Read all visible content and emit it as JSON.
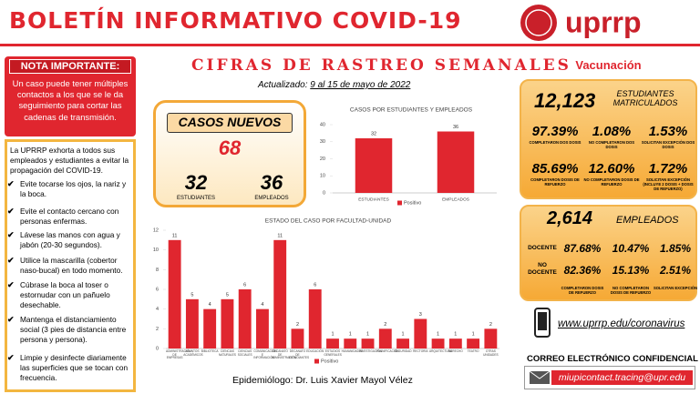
{
  "header": {
    "title": "BOLETÍN INFORMATIVO COVID-19",
    "logo_text": "uprrp"
  },
  "note": {
    "title": "NOTA IMPORTANTE:",
    "text": "Un caso puede tener múltiples contactos a los que se le da seguimiento para cortar las cadenas de transmisión."
  },
  "tips": {
    "intro": "La UPRRP exhorta a todos sus empleados y estudiantes a evitar la propagación del COVID-19.",
    "items": [
      "Evite tocarse los ojos, la nariz y la boca.",
      "Evite el contacto cercano con personas enfermas.",
      "Lávese las manos con agua y jabón (20-30 segundos).",
      "Utilice la mascarilla (cobertor naso-bucal) en todo momento.",
      "Cúbrase la boca al toser o estornudar con un pañuelo desechable.",
      "Mantenga el distanciamiento social (3 pies de distancia entre persona y persona).",
      "Limpie y desinfecte diariamente las superficies que se tocan con frecuencia."
    ]
  },
  "report": {
    "title": "CIFRAS DE RASTREO SEMANALES",
    "updated_label": "Actualizado:",
    "updated_dates": "9 al 15 de mayo de 2022"
  },
  "summary": {
    "title": "CASOS NUEVOS",
    "total": "68",
    "students": "32",
    "students_label": "ESTUDIANTES",
    "employees": "36",
    "employees_label": "EMPLEADOS"
  },
  "chart_data": [
    {
      "type": "bar",
      "title": "CASOS POR ESTUDIANTES Y EMPLEADOS",
      "categories": [
        "ESTUDIANTES",
        "EMPLEADOS"
      ],
      "series": [
        {
          "name": "Positivo",
          "color": "#e0262f",
          "values": [
            32,
            36
          ]
        }
      ],
      "ylim": [
        0,
        40
      ],
      "yticks": [
        0,
        10,
        20,
        30,
        40
      ],
      "grid": false,
      "legend": "bottom"
    },
    {
      "type": "bar",
      "title": "ESTADO DEL CASO POR FACULTAD-UNIDAD",
      "categories": [
        "ADMINISTRACIÓN DE EMPRESAS",
        "ASUNTOS ACADÉMICOS",
        "BIBLIOTECA",
        "CIENCIAS NATURALES",
        "CIENCIAS SOCIALES",
        "COMUNICACIÓN E INFORMACIÓN",
        "DECANATO DE ADMINISTRACIÓN",
        "DECANATO DE ESTUDIANTES",
        "EDUCACIÓN",
        "ESTUDIOS GENERALES",
        "HUMANIDADES",
        "INVESTIGACIÓN",
        "PLANIFICACIÓN",
        "SEGURIDAD",
        "RECTORÍA",
        "ARQUITECTURA",
        "DERECHO",
        "TEATRO",
        "OTRAS UNIDADES"
      ],
      "series": [
        {
          "name": "Positivo",
          "color": "#e0262f",
          "values": [
            11,
            5,
            4,
            5,
            6,
            4,
            11,
            2,
            6,
            1,
            1,
            1,
            2,
            1,
            3,
            1,
            1,
            1,
            2
          ]
        }
      ],
      "ylim": [
        0,
        12
      ],
      "yticks": [
        0,
        2,
        4,
        6,
        8,
        10,
        12
      ],
      "grid": false,
      "legend": "bottom"
    }
  ],
  "vaccination": {
    "title": "Vacunación",
    "students": {
      "count": "12,123",
      "label": "ESTUDIANTES MATRICULADOS",
      "rows": [
        [
          {
            "value": "97.39%",
            "label": "COMPLETARON DOS DOSIS"
          },
          {
            "value": "1.08%",
            "label": "NO COMPLETARON DOS DOSIS"
          },
          {
            "value": "1.53%",
            "label": "SOLICITAN EXCEPCIÓN DOS DOSIS"
          }
        ],
        [
          {
            "value": "85.69%",
            "label": "COMPLETARON DOSIS DE REFUERZO"
          },
          {
            "value": "12.60%",
            "label": "NO COMPLETARON DOSIS DE REFUERZO"
          },
          {
            "value": "1.72%",
            "label": "SOLICITAN EXCEPCIÓN (INCLUYE 2 DOSIS + DOSIS DE REFUERZO)"
          }
        ]
      ]
    },
    "employees": {
      "count": "2,614",
      "label": "EMPLEADOS",
      "rows": [
        {
          "name": "DOCENTE",
          "values": [
            "87.68%",
            "10.47%",
            "1.85%"
          ]
        },
        {
          "name": "NO DOCENTE",
          "values": [
            "82.36%",
            "15.13%",
            "2.51%"
          ]
        }
      ],
      "columns": [
        "COMPLETARON DOSIS DE REFUERZO",
        "NO COMPLETARON DOSIS DE REFUERZO",
        "SOLICITAN EXCEPCIÓN"
      ]
    }
  },
  "contact": {
    "website": "www.uprrp.edu/coronavirus",
    "email_title": "CORREO ELECTRÓNICO CONFIDENCIAL",
    "email": "miupicontact.tracing@upr.edu"
  },
  "footer": {
    "epidemiologist": "Epidemiólogo: Dr. Luis Xavier Mayol Vélez"
  }
}
